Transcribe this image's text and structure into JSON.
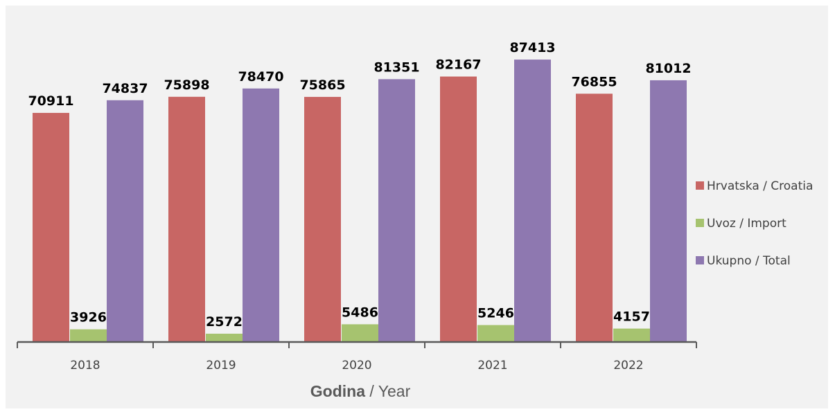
{
  "chart_data": {
    "type": "bar",
    "categories": [
      "2018",
      "2019",
      "2020",
      "2021",
      "2022"
    ],
    "series": [
      {
        "name": "Hrvatska / Croatia",
        "color": "#c86664",
        "values": [
          70911,
          75898,
          75865,
          82167,
          76855
        ]
      },
      {
        "name": "Uvoz / Import",
        "color": "#a6c36f",
        "values": [
          3926,
          2572,
          5486,
          5246,
          4157
        ]
      },
      {
        "name": "Ukupno / Total",
        "color": "#8e78b0",
        "values": [
          74837,
          78470,
          81351,
          87413,
          81012
        ]
      }
    ],
    "xlabel_bold": "Godina",
    "xlabel_rest": " / Year",
    "ylim": [
      0,
      93000
    ],
    "grid": false,
    "legend_position": "right"
  }
}
